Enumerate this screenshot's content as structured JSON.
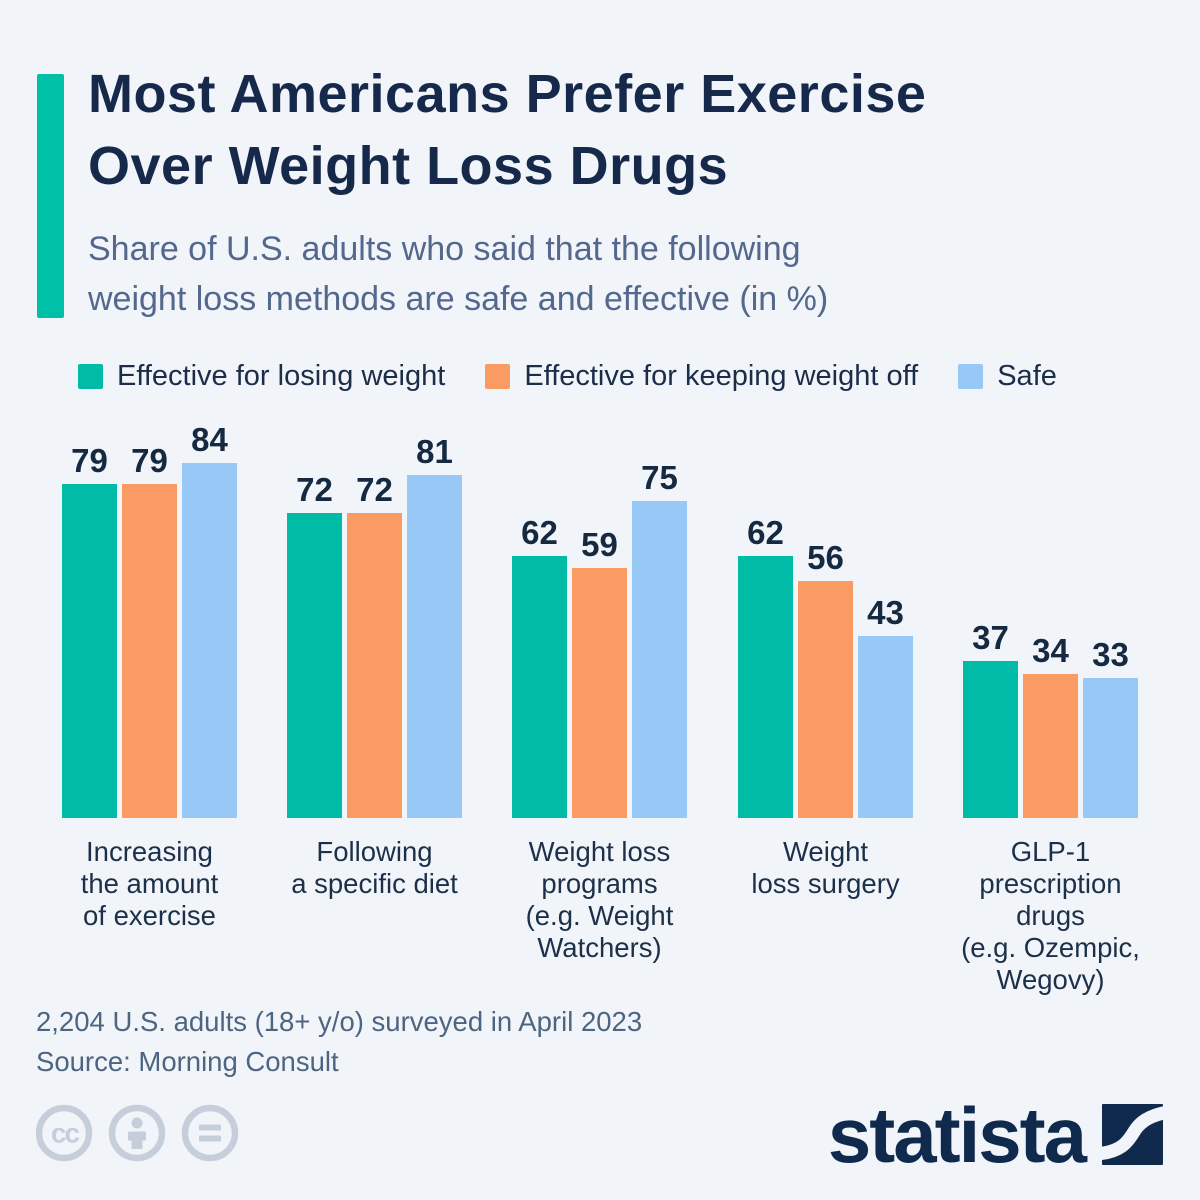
{
  "title": "Most Americans Prefer Exercise\nOver Weight Loss Drugs",
  "subtitle": "Share of U.S. adults who said that the following\nweight loss methods are safe and effective (in %)",
  "colors": {
    "background": "#F1F5FA",
    "accent_bar": "#00C0A8",
    "title_text": "#17294A",
    "subtitle_text": "#53688C",
    "value_label": "#152941",
    "category_label": "#1D3049",
    "legend_text": "#1B2D49",
    "footer_text": "#4D6581",
    "cc_icon": "#C5CEDA",
    "logo": "#102A4D",
    "series_teal": "#00BCA6",
    "series_orange": "#F99B63",
    "series_blue": "#98C9F6"
  },
  "legend": {
    "items": [
      {
        "label": "Effective for losing weight",
        "color": "#00BCA6"
      },
      {
        "label": "Effective for keeping weight off",
        "color": "#F99B63"
      },
      {
        "label": "Safe",
        "color": "#98C9F6"
      }
    ]
  },
  "chart_data": {
    "type": "bar",
    "title": "Most Americans Prefer Exercise Over Weight Loss Drugs",
    "subtitle": "Share of U.S. adults who said that the following weight loss methods are safe and effective (in %)",
    "categories": [
      "Increasing the amount of exercise",
      "Following a specific diet",
      "Weight loss programs (e.g. Weight Watchers)",
      "Weight loss surgery",
      "GLP-1 prescription drugs (e.g. Ozempic, Wegovy)"
    ],
    "category_display": [
      "Increasing\nthe amount\nof exercise",
      "Following\na specific diet",
      "Weight loss\nprograms\n(e.g. Weight\nWatchers)",
      "Weight\nloss surgery",
      "GLP-1\nprescription\ndrugs\n(e.g. Ozempic,\nWegovy)"
    ],
    "series": [
      {
        "name": "Effective for losing weight",
        "color": "#00BCA6",
        "values": [
          79,
          72,
          62,
          62,
          37
        ]
      },
      {
        "name": "Effective for keeping weight off",
        "color": "#F99B63",
        "values": [
          79,
          72,
          59,
          56,
          34
        ]
      },
      {
        "name": "Safe",
        "color": "#98C9F6",
        "values": [
          84,
          81,
          75,
          43,
          33
        ]
      }
    ],
    "ylim": [
      0,
      90
    ],
    "grid": false,
    "axes_hidden": true,
    "value_labels_shown": true,
    "legend_position": "top"
  },
  "footer": {
    "line1": "2,204 U.S. adults (18+ y/o) surveyed in April 2023",
    "line2": "Source: Morning Consult"
  },
  "branding": {
    "wordmark": "statista",
    "license_icons": [
      "cc-icon",
      "person-icon",
      "equals-icon"
    ]
  }
}
